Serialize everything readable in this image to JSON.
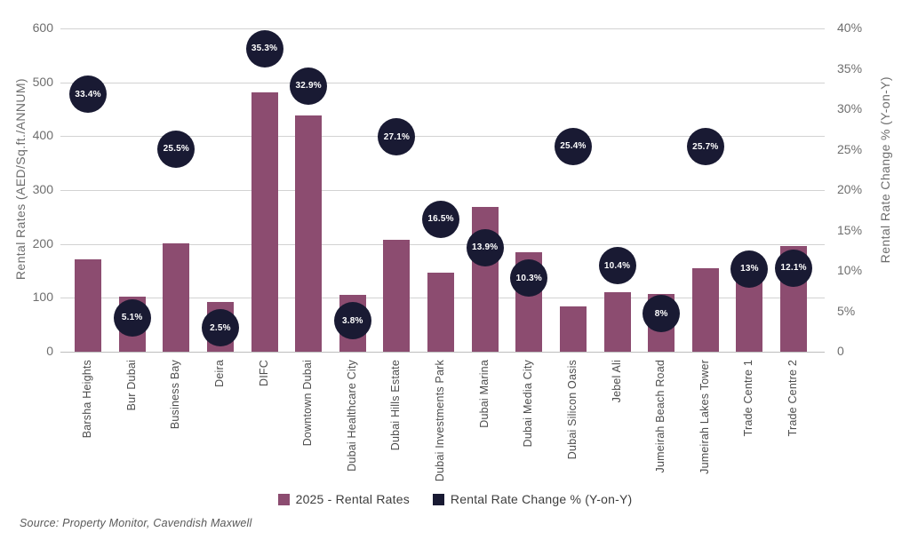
{
  "source_note": "Source: Property Monitor, Cavendish Maxwell",
  "colors": {
    "bar": "#8c4c70",
    "bubble": "#191a33",
    "bubble_text": "#ffffff",
    "grid": "#d2d2d2",
    "tick_text": "#6e6e6e",
    "xlabel_text": "#4d4d4d"
  },
  "legend": [
    {
      "label": "2025 - Rental Rates",
      "color_key": "bar"
    },
    {
      "label": "Rental Rate Change % (Y-on-Y)",
      "color_key": "bubble"
    }
  ],
  "chart_data": {
    "type": "bar",
    "title": "",
    "categories": [
      "Barsha Heights",
      "Bur Dubai",
      "Business Bay",
      "Deira",
      "DIFC",
      "Downtown Dubai",
      "Dubai Healthcare City",
      "Dubai Hills Estate",
      "Dubai Investments Park",
      "Dubai Marina",
      "Dubai Media City",
      "Dubai Silicon Oasis",
      "Jebel Ali",
      "Jumeirah Beach Road",
      "Jumeirah Lakes Tower",
      "Trade Centre 1",
      "Trade Centre 2"
    ],
    "series": [
      {
        "name": "2025 - Rental Rates",
        "type": "bar",
        "axis": "left",
        "values": [
          172,
          103,
          201,
          92,
          481,
          438,
          105,
          208,
          146,
          269,
          184,
          84,
          110,
          107,
          155,
          165,
          196
        ]
      },
      {
        "name": "Rental Rate Change % (Y-on-Y)",
        "type": "point",
        "axis": "right",
        "values": [
          33.4,
          5.1,
          25.5,
          2.5,
          35.3,
          32.9,
          3.8,
          27.1,
          16.5,
          13.9,
          10.3,
          25.4,
          10.4,
          8,
          25.7,
          13,
          12.1
        ],
        "labels": [
          "33.4%",
          "5.1%",
          "25.5%",
          "2.5%",
          "35.3%",
          "32.9%",
          "3.8%",
          "27.1%",
          "16.5%",
          "13.9%",
          "10.3%",
          "25.4%",
          "10.4%",
          "8%",
          "25.7%",
          "13%",
          "12.1%"
        ]
      }
    ],
    "ylabel_left": "Rental Rates (AED/Sq.ft./ANNUM)",
    "ylabel_right": "Rental Rate Change % (Y-on-Y)",
    "ylim_left": [
      0,
      600
    ],
    "ylim_right": [
      0,
      40
    ],
    "yticks_left": [
      "600",
      "500",
      "400",
      "300",
      "200",
      "100",
      "0"
    ],
    "ytick_values_left": [
      600,
      500,
      400,
      300,
      200,
      100,
      0
    ],
    "yticks_right": [
      "40%",
      "35%",
      "30%",
      "25%",
      "20%",
      "15%",
      "10%",
      "5%",
      "0"
    ],
    "ytick_values_right": [
      40,
      35,
      30,
      25,
      20,
      15,
      10,
      5,
      0
    ],
    "grid": true,
    "legend_position": "bottom",
    "layout_hints": {
      "bubble_dy": [
        14,
        8,
        4,
        -4,
        -20,
        0,
        0,
        5,
        1,
        9,
        11,
        0,
        -2,
        30,
        3,
        25,
        16
      ]
    }
  }
}
